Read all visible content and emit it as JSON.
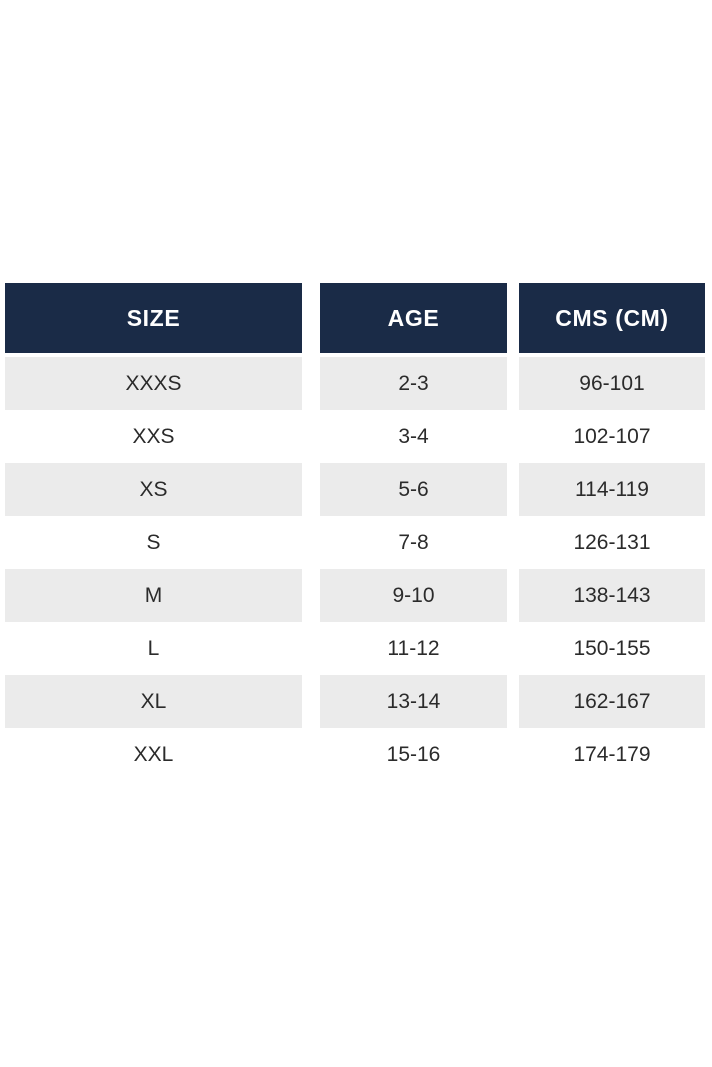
{
  "table": {
    "columns": [
      {
        "label": "SIZE"
      },
      {
        "label": "AGE"
      },
      {
        "label": "CMS (CM)"
      }
    ],
    "rows": [
      {
        "size": "XXXS",
        "age": "2-3",
        "cms": "96-101"
      },
      {
        "size": "XXS",
        "age": "3-4",
        "cms": "102-107"
      },
      {
        "size": "XS",
        "age": "5-6",
        "cms": "114-119"
      },
      {
        "size": "S",
        "age": "7-8",
        "cms": "126-131"
      },
      {
        "size": "M",
        "age": "9-10",
        "cms": "138-143"
      },
      {
        "size": "L",
        "age": "11-12",
        "cms": "150-155"
      },
      {
        "size": "XL",
        "age": "13-14",
        "cms": "162-167"
      },
      {
        "size": "XXL",
        "age": "15-16",
        "cms": "174-179"
      }
    ],
    "colors": {
      "header_bg": "#1a2b47",
      "header_text": "#ffffff",
      "row_alt_bg": "#ebebeb",
      "row_bg": "#ffffff",
      "body_text": "#2b2b2b",
      "page_bg": "#ffffff"
    }
  },
  "chart_data": {
    "type": "table",
    "title": "",
    "columns": [
      "SIZE",
      "AGE",
      "CMS (CM)"
    ],
    "rows": [
      [
        "XXXS",
        "2-3",
        "96-101"
      ],
      [
        "XXS",
        "3-4",
        "102-107"
      ],
      [
        "XS",
        "5-6",
        "114-119"
      ],
      [
        "S",
        "7-8",
        "126-131"
      ],
      [
        "M",
        "9-10",
        "138-143"
      ],
      [
        "L",
        "11-12",
        "150-155"
      ],
      [
        "XL",
        "13-14",
        "162-167"
      ],
      [
        "XXL",
        "15-16",
        "174-179"
      ]
    ],
    "layout_hints": {
      "header_style": "dark-navy, bold white text",
      "row_striping": "alternating gray/white starting gray",
      "column_blocks_separated_by_white_gaps": true
    }
  }
}
